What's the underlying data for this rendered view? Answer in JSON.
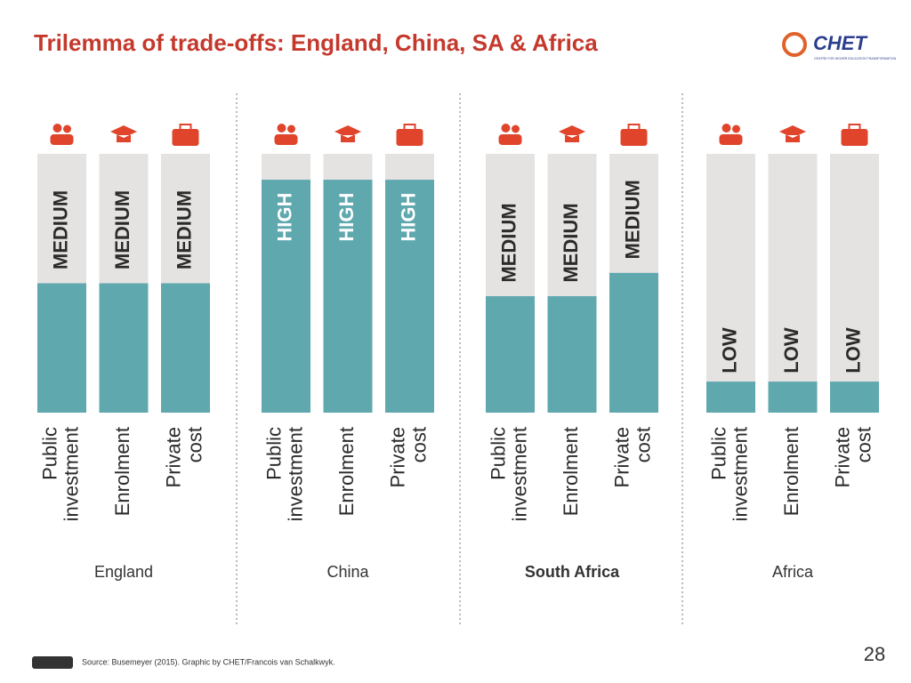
{
  "chart_data": {
    "type": "bar",
    "title": "Trilemma of trade-offs: England, China, SA & Africa",
    "logo": "CHET",
    "logo_subtitle": "CENTRE FOR HIGHER EDUCATION TRANSFORMATION",
    "source": "Source: Busemeyer (2015). Graphic by CHET/Francois van Schalkwyk.",
    "page_number": "28",
    "color": "#5fa8ae",
    "background_color": "#e4e3e1",
    "ylim": [
      0,
      100
    ],
    "groups": [
      {
        "name": "England",
        "bold": false,
        "bars": [
          {
            "category": "Public investment",
            "level": "MEDIUM",
            "value": 50
          },
          {
            "category": "Enrolment",
            "level": "MEDIUM",
            "value": 50
          },
          {
            "category": "Private cost",
            "level": "MEDIUM",
            "value": 50
          }
        ]
      },
      {
        "name": "China",
        "bold": false,
        "bars": [
          {
            "category": "Public investment",
            "level": "HIGH",
            "value": 90
          },
          {
            "category": "Enrolment",
            "level": "HIGH",
            "value": 90
          },
          {
            "category": "Private cost",
            "level": "HIGH",
            "value": 90
          }
        ]
      },
      {
        "name": "South Africa",
        "bold": true,
        "bars": [
          {
            "category": "Public investment",
            "level": "MEDIUM",
            "value": 45
          },
          {
            "category": "Enrolment",
            "level": "MEDIUM",
            "value": 45
          },
          {
            "category": "Private cost",
            "level": "MEDIUM",
            "value": 54
          }
        ]
      },
      {
        "name": "Africa",
        "bold": false,
        "bars": [
          {
            "category": "Public investment",
            "level": "LOW",
            "value": 12
          },
          {
            "category": "Enrolment",
            "level": "LOW",
            "value": 12
          },
          {
            "category": "Private cost",
            "level": "LOW",
            "value": 12
          }
        ]
      }
    ]
  }
}
